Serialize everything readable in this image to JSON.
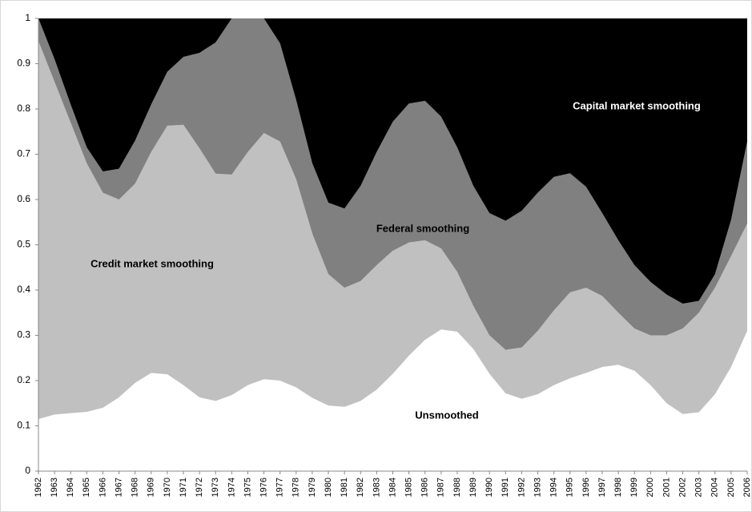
{
  "chart_data": {
    "type": "stacked_area",
    "categories": [
      "1962",
      "1963",
      "1964",
      "1965",
      "1966",
      "1967",
      "1968",
      "1969",
      "1970",
      "1971",
      "1972",
      "1973",
      "1974",
      "1975",
      "1976",
      "1977",
      "1978",
      "1979",
      "1980",
      "1981",
      "1982",
      "1983",
      "1984",
      "1985",
      "1986",
      "1987",
      "1988",
      "1989",
      "1990",
      "1991",
      "1992",
      "1993",
      "1994",
      "1995",
      "1996",
      "1997",
      "1998",
      "1999",
      "2000",
      "2001",
      "2002",
      "2003",
      "2004",
      "2005",
      "2006"
    ],
    "series": [
      {
        "name": "Unsmoothed",
        "color": "#ffffff",
        "values": [
          0.115,
          0.125,
          0.128,
          0.131,
          0.14,
          0.163,
          0.195,
          0.217,
          0.214,
          0.19,
          0.163,
          0.155,
          0.168,
          0.19,
          0.203,
          0.2,
          0.185,
          0.162,
          0.145,
          0.142,
          0.155,
          0.18,
          0.215,
          0.255,
          0.29,
          0.313,
          0.308,
          0.27,
          0.215,
          0.172,
          0.16,
          0.17,
          0.19,
          0.205,
          0.217,
          0.23,
          0.235,
          0.222,
          0.19,
          0.15,
          0.126,
          0.13,
          0.17,
          0.23,
          0.31
        ]
      },
      {
        "name": "Credit market smoothing",
        "color": "#c0c0c0",
        "values": [
          0.835,
          0.735,
          0.642,
          0.549,
          0.475,
          0.437,
          0.44,
          0.488,
          0.549,
          0.575,
          0.55,
          0.502,
          0.487,
          0.515,
          0.544,
          0.528,
          0.46,
          0.363,
          0.29,
          0.263,
          0.265,
          0.275,
          0.272,
          0.25,
          0.22,
          0.179,
          0.132,
          0.095,
          0.085,
          0.096,
          0.113,
          0.14,
          0.165,
          0.19,
          0.188,
          0.157,
          0.115,
          0.093,
          0.11,
          0.15,
          0.189,
          0.22,
          0.235,
          0.245,
          0.237
        ]
      },
      {
        "name": "Federal smoothing",
        "color": "#808080",
        "values": [
          0.05,
          0.05,
          0.04,
          0.035,
          0.047,
          0.068,
          0.095,
          0.105,
          0.119,
          0.15,
          0.211,
          0.29,
          0.345,
          0.295,
          0.253,
          0.217,
          0.175,
          0.155,
          0.158,
          0.175,
          0.21,
          0.25,
          0.285,
          0.307,
          0.308,
          0.291,
          0.275,
          0.265,
          0.27,
          0.285,
          0.302,
          0.305,
          0.295,
          0.263,
          0.223,
          0.183,
          0.16,
          0.14,
          0.118,
          0.09,
          0.055,
          0.026,
          0.03,
          0.08,
          0.181
        ]
      },
      {
        "name": "Capital market smoothing",
        "color": "#000000",
        "values": [
          0,
          0.09,
          0.19,
          0.285,
          0.338,
          0.332,
          0.27,
          0.19,
          0.118,
          0.085,
          0.076,
          0.053,
          0,
          0,
          0,
          0.055,
          0.18,
          0.32,
          0.407,
          0.42,
          0.37,
          0.295,
          0.228,
          0.188,
          0.182,
          0.217,
          0.285,
          0.37,
          0.43,
          0.447,
          0.425,
          0.385,
          0.35,
          0.342,
          0.372,
          0.43,
          0.49,
          0.545,
          0.582,
          0.61,
          0.63,
          0.624,
          0.565,
          0.445,
          0.272
        ]
      }
    ],
    "ylim": [
      0,
      1
    ],
    "yticks": [
      0,
      0.1,
      0.2,
      0.3,
      0.4,
      0.5,
      0.6,
      0.7,
      0.8,
      0.9,
      1
    ]
  }
}
